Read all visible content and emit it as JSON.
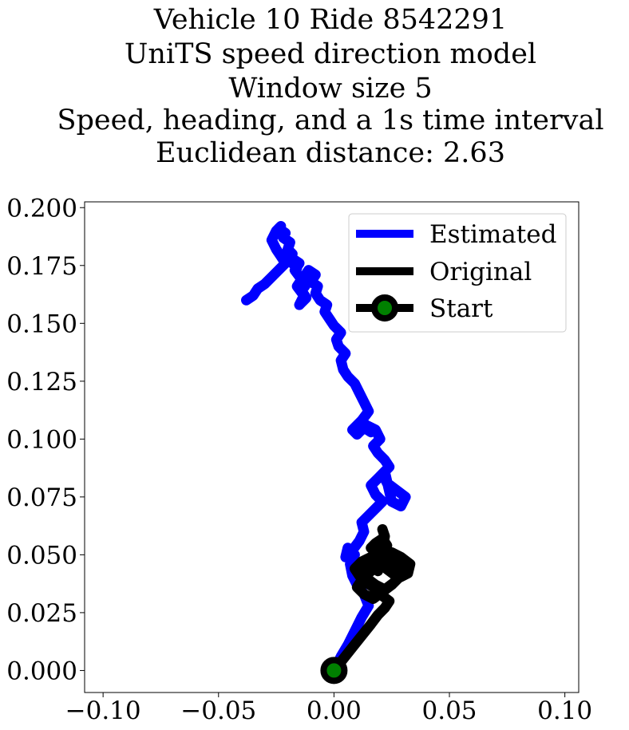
{
  "chart_data": {
    "type": "line",
    "title": [
      "Vehicle 10 Ride 8542291",
      "UniTS speed direction model",
      "Window size 5",
      "Speed, heading, and a 1s time interval",
      "Euclidean distance: 2.63"
    ],
    "xlabel": "",
    "ylabel": "",
    "xlim": [
      -0.108,
      0.106
    ],
    "ylim": [
      -0.0095,
      0.2025
    ],
    "xticks": [
      -0.1,
      -0.05,
      0.0,
      0.05,
      0.1
    ],
    "xtick_labels": [
      "−0.10",
      "−0.05",
      "0.00",
      "0.05",
      "0.10"
    ],
    "yticks": [
      0.0,
      0.025,
      0.05,
      0.075,
      0.1,
      0.125,
      0.15,
      0.175,
      0.2
    ],
    "ytick_labels": [
      "0.000",
      "0.025",
      "0.050",
      "0.075",
      "0.100",
      "0.125",
      "0.150",
      "0.175",
      "0.200"
    ],
    "grid": false,
    "legend_position": "top-right",
    "series": [
      {
        "name": "Estimated",
        "color": "#0000ff",
        "x": [
          0.0,
          0.003,
          0.006,
          0.009,
          0.012,
          0.015,
          0.013,
          0.01,
          0.008,
          0.007,
          0.009,
          0.006,
          0.005,
          0.008,
          0.011,
          0.013,
          0.012,
          0.016,
          0.019,
          0.021,
          0.018,
          0.016,
          0.019,
          0.022,
          0.025,
          0.029,
          0.031,
          0.027,
          0.023,
          0.021,
          0.024,
          0.022,
          0.019,
          0.017,
          0.02,
          0.018,
          0.014,
          0.016,
          0.013,
          0.01,
          0.008,
          0.012,
          0.015,
          0.013,
          0.011,
          0.009,
          0.006,
          0.004,
          0.003,
          0.005,
          0.002,
          0.001,
          0.003,
          0.0,
          -0.002,
          -0.004,
          -0.003,
          -0.006,
          -0.008,
          -0.007,
          -0.01,
          -0.008,
          -0.011,
          -0.013,
          -0.012,
          -0.014,
          -0.012,
          -0.015,
          -0.013,
          -0.016,
          -0.014,
          -0.017,
          -0.015,
          -0.018,
          -0.016,
          -0.019,
          -0.018,
          -0.02,
          -0.019,
          -0.022,
          -0.021,
          -0.024,
          -0.023,
          -0.025,
          -0.027,
          -0.025,
          -0.023,
          -0.021,
          -0.024,
          -0.027,
          -0.03,
          -0.033,
          -0.035,
          -0.038
        ],
        "y": [
          0.0,
          0.006,
          0.011,
          0.017,
          0.023,
          0.028,
          0.033,
          0.037,
          0.041,
          0.046,
          0.05,
          0.053,
          0.049,
          0.052,
          0.056,
          0.06,
          0.064,
          0.068,
          0.071,
          0.073,
          0.076,
          0.08,
          0.083,
          0.086,
          0.073,
          0.071,
          0.075,
          0.078,
          0.081,
          0.085,
          0.088,
          0.091,
          0.094,
          0.097,
          0.1,
          0.104,
          0.106,
          0.103,
          0.105,
          0.102,
          0.104,
          0.108,
          0.112,
          0.116,
          0.12,
          0.124,
          0.127,
          0.13,
          0.134,
          0.137,
          0.14,
          0.143,
          0.146,
          0.149,
          0.152,
          0.155,
          0.158,
          0.16,
          0.163,
          0.166,
          0.168,
          0.171,
          0.173,
          0.17,
          0.167,
          0.164,
          0.161,
          0.158,
          0.162,
          0.166,
          0.169,
          0.173,
          0.176,
          0.178,
          0.174,
          0.177,
          0.18,
          0.182,
          0.185,
          0.187,
          0.189,
          0.191,
          0.192,
          0.19,
          0.186,
          0.182,
          0.179,
          0.176,
          0.173,
          0.17,
          0.167,
          0.165,
          0.162,
          0.16
        ]
      },
      {
        "name": "Original",
        "color": "#000000",
        "x": [
          0.0,
          0.004,
          0.008,
          0.012,
          0.016,
          0.019,
          0.022,
          0.024,
          0.02,
          0.017,
          0.014,
          0.011,
          0.009,
          0.012,
          0.016,
          0.02,
          0.024,
          0.028,
          0.032,
          0.033,
          0.029,
          0.025,
          0.021,
          0.018,
          0.015,
          0.012,
          0.01,
          0.013,
          0.017,
          0.021,
          0.025,
          0.028,
          0.031,
          0.027,
          0.023,
          0.019,
          0.016,
          0.013,
          0.011,
          0.014,
          0.018,
          0.022,
          0.026,
          0.029,
          0.025,
          0.022,
          0.019,
          0.016,
          0.018,
          0.021,
          0.023,
          0.02,
          0.017,
          0.019,
          0.022,
          0.021
        ],
        "y": [
          0.0,
          0.005,
          0.01,
          0.015,
          0.02,
          0.024,
          0.027,
          0.03,
          0.033,
          0.036,
          0.038,
          0.041,
          0.044,
          0.047,
          0.049,
          0.046,
          0.043,
          0.04,
          0.042,
          0.046,
          0.049,
          0.051,
          0.048,
          0.045,
          0.042,
          0.039,
          0.036,
          0.033,
          0.031,
          0.034,
          0.037,
          0.04,
          0.044,
          0.047,
          0.05,
          0.052,
          0.049,
          0.046,
          0.043,
          0.04,
          0.037,
          0.035,
          0.038,
          0.042,
          0.045,
          0.048,
          0.051,
          0.053,
          0.055,
          0.057,
          0.054,
          0.05,
          0.046,
          0.043,
          0.058,
          0.061
        ]
      },
      {
        "name": "Start",
        "color": "#000000",
        "marker_face": "#008000",
        "x": [
          0.0
        ],
        "y": [
          0.0
        ]
      }
    ]
  }
}
